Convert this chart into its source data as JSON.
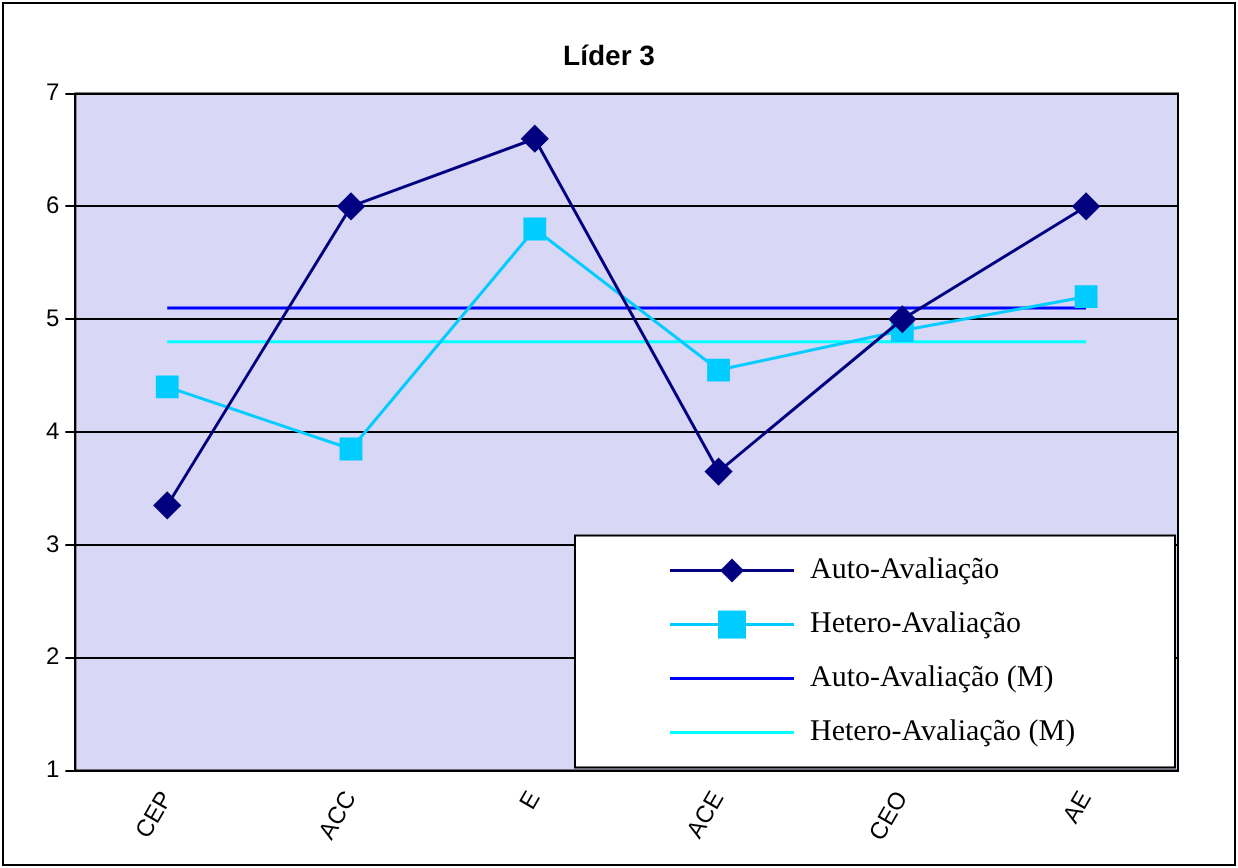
{
  "chart_data": {
    "type": "line",
    "title": "Líder 3",
    "categories": [
      "CEP",
      "ACC",
      "E",
      "ACE",
      "CEO",
      "AE"
    ],
    "series": [
      {
        "name": "Auto-Avaliação",
        "color": "#000080",
        "marker": "diamond",
        "values": [
          3.35,
          6.0,
          6.6,
          3.65,
          5.0,
          6.0
        ]
      },
      {
        "name": "Hetero-Avaliação",
        "color": "#00ccff",
        "marker": "square",
        "values": [
          4.4,
          3.85,
          5.8,
          4.55,
          4.9,
          5.2
        ]
      },
      {
        "name": "Auto-Avaliação (M)",
        "color": "#0000ff",
        "marker": "none",
        "values": [
          5.1,
          5.1,
          5.1,
          5.1,
          5.1,
          5.1
        ]
      },
      {
        "name": "Hetero-Avaliação (M)",
        "color": "#00ffff",
        "marker": "none",
        "values": [
          4.8,
          4.8,
          4.8,
          4.8,
          4.8,
          4.8
        ]
      }
    ],
    "ylim": [
      1,
      7
    ],
    "yticks": [
      1,
      2,
      3,
      4,
      5,
      6,
      7
    ],
    "grid": "y",
    "legend": "bottom right",
    "line_style": "solid"
  }
}
